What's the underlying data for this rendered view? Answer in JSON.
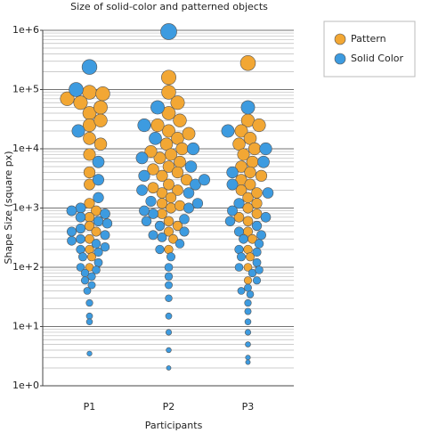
{
  "chart_data": {
    "type": "beeswarm",
    "title": "Size of solid-color and patterned objects",
    "xlabel": "Participants",
    "ylabel": "Shape Size (square px)",
    "categories": [
      "P1",
      "P2",
      "P3"
    ],
    "log_scale": true,
    "grid": true,
    "legend": "right",
    "ylim": [
      1,
      1000000
    ],
    "yticks": [
      {
        "value": 1,
        "label": "1e+0"
      },
      {
        "value": 10,
        "label": "1e+1"
      },
      {
        "value": 100,
        "label": "1e+2"
      },
      {
        "value": 1000,
        "label": "1e+3"
      },
      {
        "value": 10000,
        "label": "1e+4"
      },
      {
        "value": 100000,
        "label": "1e+5"
      },
      {
        "value": 1000000,
        "label": "1e+6"
      }
    ],
    "series": [
      {
        "name": "Pattern",
        "color": "#f2a734",
        "x": [
          "P1",
          "P1",
          "P1",
          "P1",
          "P1",
          "P1",
          "P1",
          "P1",
          "P1",
          "P1",
          "P1",
          "P1",
          "P1",
          "P1",
          "P1",
          "P1",
          "P1",
          "P1",
          "P1",
          "P1",
          "P1",
          "P1",
          "P2",
          "P2",
          "P2",
          "P2",
          "P2",
          "P2",
          "P2",
          "P2",
          "P2",
          "P2",
          "P2",
          "P2",
          "P2",
          "P2",
          "P2",
          "P2",
          "P2",
          "P2",
          "P2",
          "P2",
          "P2",
          "P2",
          "P2",
          "P2",
          "P2",
          "P2",
          "P2",
          "P2",
          "P2",
          "P2",
          "P2",
          "P2",
          "P2",
          "P2",
          "P3",
          "P3",
          "P3",
          "P3",
          "P3",
          "P3",
          "P3",
          "P3",
          "P3",
          "P3",
          "P3",
          "P3",
          "P3",
          "P3",
          "P3",
          "P3",
          "P3",
          "P3",
          "P3",
          "P3",
          "P3",
          "P3",
          "P3",
          "P3",
          "P3",
          "P3",
          "P3",
          "P3"
        ],
        "values": [
          90000,
          85000,
          60000,
          40000,
          25000,
          15000,
          8000,
          4000,
          2500,
          1200,
          900,
          700,
          500,
          400,
          300,
          200,
          150,
          100,
          70000,
          50000,
          30000,
          12000,
          160000,
          90000,
          60000,
          40000,
          30000,
          20000,
          15000,
          12000,
          10000,
          8000,
          7000,
          6000,
          5000,
          4000,
          3500,
          3000,
          2500,
          2000,
          1800,
          1500,
          1200,
          1000,
          800,
          600,
          500,
          400,
          300,
          200,
          25000,
          18000,
          9000,
          4500,
          2200,
          1100,
          280000,
          30000,
          25000,
          20000,
          15000,
          12000,
          10000,
          8000,
          6000,
          5000,
          4000,
          3000,
          2500,
          2000,
          1500,
          1200,
          1000,
          800,
          600,
          400,
          300,
          200,
          150,
          100,
          60,
          3500,
          1800,
          700
        ]
      },
      {
        "name": "Solid Color",
        "color": "#3d9be0",
        "x": [
          "P1",
          "P1",
          "P1",
          "P1",
          "P1",
          "P1",
          "P1",
          "P1",
          "P1",
          "P1",
          "P1",
          "P1",
          "P1",
          "P1",
          "P1",
          "P1",
          "P1",
          "P1",
          "P1",
          "P1",
          "P1",
          "P1",
          "P1",
          "P1",
          "P1",
          "P1",
          "P1",
          "P1",
          "P1",
          "P1",
          "P1",
          "P1",
          "P1",
          "P1",
          "P2",
          "P2",
          "P2",
          "P2",
          "P2",
          "P2",
          "P2",
          "P2",
          "P2",
          "P2",
          "P2",
          "P2",
          "P2",
          "P2",
          "P2",
          "P2",
          "P2",
          "P2",
          "P2",
          "P2",
          "P2",
          "P2",
          "P2",
          "P2",
          "P2",
          "P2",
          "P2",
          "P2",
          "P2",
          "P2",
          "P2",
          "P2",
          "P2",
          "P2",
          "P3",
          "P3",
          "P3",
          "P3",
          "P3",
          "P3",
          "P3",
          "P3",
          "P3",
          "P3",
          "P3",
          "P3",
          "P3",
          "P3",
          "P3",
          "P3",
          "P3",
          "P3",
          "P3",
          "P3",
          "P3",
          "P3",
          "P3",
          "P3",
          "P3",
          "P3",
          "P3",
          "P3",
          "P3",
          "P3",
          "P3",
          "P3",
          "P3",
          "P3"
        ],
        "values": [
          240000,
          100000,
          20000,
          6000,
          3000,
          1500,
          1000,
          800,
          600,
          450,
          350,
          300,
          250,
          200,
          180,
          150,
          120,
          100,
          90,
          80,
          70,
          60,
          50,
          40,
          25,
          15,
          12,
          3.5,
          900,
          700,
          550,
          400,
          280,
          220,
          950000,
          50000,
          25000,
          15000,
          10000,
          7000,
          5000,
          3500,
          2500,
          1800,
          1300,
          1000,
          800,
          650,
          500,
          400,
          320,
          250,
          200,
          150,
          100,
          70,
          50,
          30,
          15,
          8,
          4,
          2,
          1200,
          900,
          600,
          350,
          3000,
          2000,
          50000,
          20000,
          10000,
          6000,
          4000,
          2500,
          1800,
          1200,
          900,
          700,
          500,
          400,
          300,
          250,
          200,
          150,
          120,
          100,
          80,
          60,
          45,
          35,
          25,
          18,
          12,
          8,
          5,
          3,
          2.5,
          600,
          350,
          180,
          90,
          40
        ]
      }
    ]
  }
}
